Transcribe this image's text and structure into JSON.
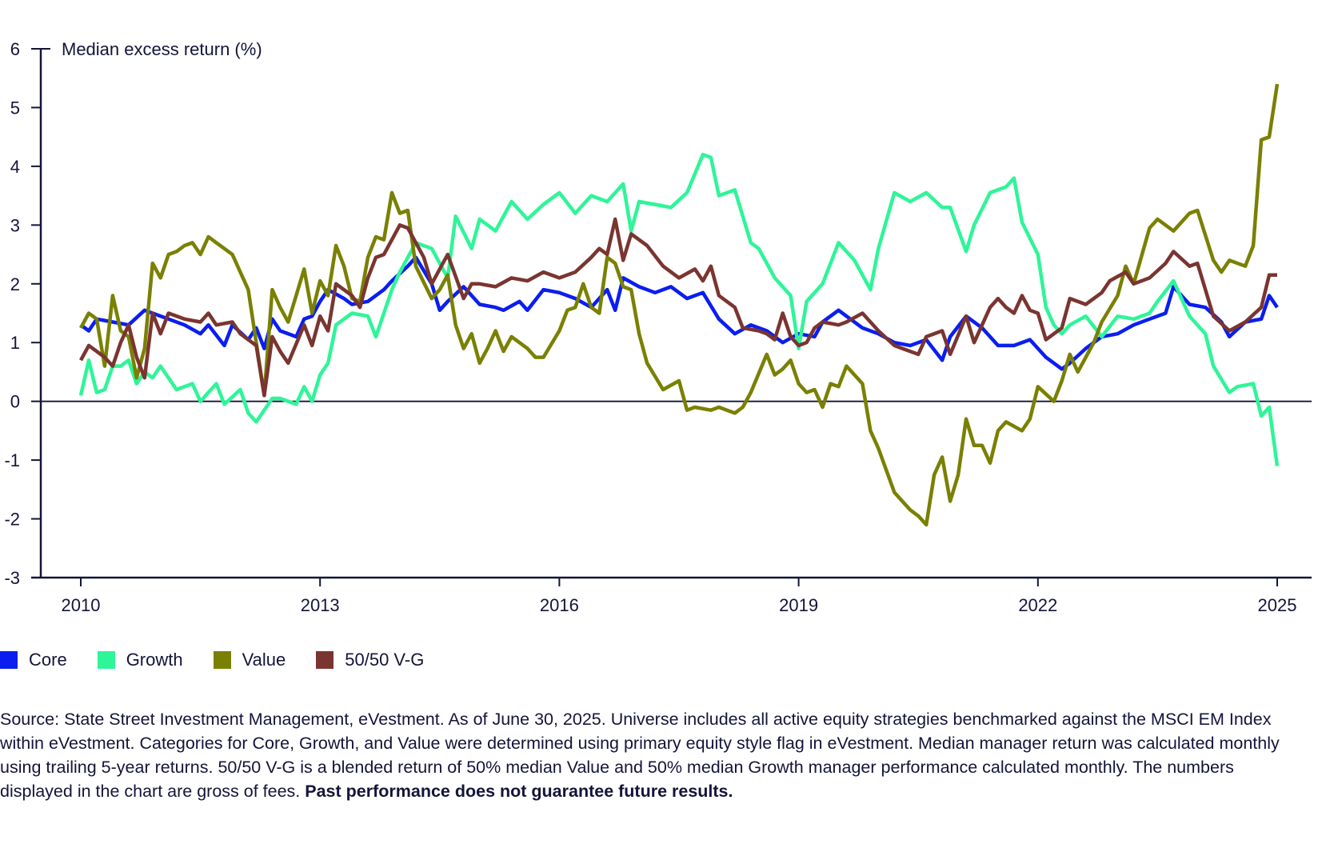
{
  "chart_data": {
    "type": "line",
    "title": "",
    "ylabel": "Median excess return (%)",
    "xlabel": "",
    "xlim": [
      2009.5,
      2025.7
    ],
    "ylim": [
      -3,
      6
    ],
    "yticks": [
      -3,
      -2,
      -1,
      0,
      1,
      2,
      3,
      4,
      5,
      6
    ],
    "xticks": [
      2010,
      2013,
      2016,
      2019,
      2022,
      2025
    ],
    "grid": false,
    "zero_line": true,
    "legend_position": "bottom-left",
    "series": [
      {
        "name": "Core",
        "color": "#0a1ef0",
        "x": [
          2010.0,
          2010.1,
          2010.2,
          2010.4,
          2010.6,
          2010.8,
          2010.9,
          2011.1,
          2011.3,
          2011.5,
          2011.6,
          2011.8,
          2011.9,
          2012.1,
          2012.2,
          2012.3,
          2012.4,
          2012.5,
          2012.7,
          2012.8,
          2012.9,
          2013.0,
          2013.1,
          2013.3,
          2013.4,
          2013.6,
          2013.8,
          2013.9,
          2014.1,
          2014.2,
          2014.4,
          2014.5,
          2014.6,
          2014.8,
          2015.0,
          2015.2,
          2015.3,
          2015.5,
          2015.6,
          2015.8,
          2016.0,
          2016.2,
          2016.4,
          2016.6,
          2016.7,
          2016.8,
          2017.0,
          2017.2,
          2017.4,
          2017.6,
          2017.8,
          2018.0,
          2018.2,
          2018.4,
          2018.6,
          2018.8,
          2019.0,
          2019.2,
          2019.3,
          2019.5,
          2019.6,
          2019.8,
          2020.0,
          2020.2,
          2020.4,
          2020.6,
          2020.8,
          2020.9,
          2021.1,
          2021.3,
          2021.5,
          2021.7,
          2021.9,
          2022.1,
          2022.3,
          2022.4,
          2022.6,
          2022.8,
          2023.0,
          2023.2,
          2023.4,
          2023.6,
          2023.7,
          2023.9,
          2024.1,
          2024.3,
          2024.4,
          2024.6,
          2024.8,
          2024.9,
          2025.0
        ],
        "y": [
          1.3,
          1.2,
          1.4,
          1.35,
          1.3,
          1.55,
          1.5,
          1.4,
          1.3,
          1.15,
          1.3,
          0.95,
          1.3,
          1.05,
          1.25,
          0.9,
          1.4,
          1.2,
          1.1,
          1.4,
          1.45,
          1.7,
          1.9,
          1.75,
          1.65,
          1.7,
          1.9,
          2.05,
          2.3,
          2.45,
          2.0,
          1.55,
          1.7,
          1.95,
          1.65,
          1.6,
          1.55,
          1.7,
          1.55,
          1.9,
          1.85,
          1.75,
          1.6,
          1.9,
          1.55,
          2.1,
          1.95,
          1.85,
          1.95,
          1.75,
          1.85,
          1.4,
          1.15,
          1.3,
          1.2,
          1.0,
          1.15,
          1.1,
          1.35,
          1.55,
          1.45,
          1.25,
          1.15,
          1.0,
          0.95,
          1.05,
          0.7,
          1.1,
          1.45,
          1.25,
          0.95,
          0.95,
          1.05,
          0.75,
          0.55,
          0.65,
          0.9,
          1.1,
          1.15,
          1.3,
          1.4,
          1.5,
          1.95,
          1.65,
          1.6,
          1.35,
          1.1,
          1.35,
          1.4,
          1.8,
          1.6
        ]
      },
      {
        "name": "Growth",
        "color": "#2ef598",
        "x": [
          2010.0,
          2010.1,
          2010.2,
          2010.3,
          2010.4,
          2010.5,
          2010.6,
          2010.7,
          2010.8,
          2010.9,
          2011.0,
          2011.2,
          2011.4,
          2011.5,
          2011.7,
          2011.8,
          2012.0,
          2012.1,
          2012.2,
          2012.4,
          2012.5,
          2012.7,
          2012.8,
          2012.9,
          2013.0,
          2013.1,
          2013.2,
          2013.4,
          2013.6,
          2013.7,
          2013.9,
          2014.0,
          2014.2,
          2014.4,
          2014.6,
          2014.7,
          2014.9,
          2015.0,
          2015.2,
          2015.4,
          2015.6,
          2015.8,
          2016.0,
          2016.2,
          2016.4,
          2016.6,
          2016.8,
          2016.9,
          2017.0,
          2017.2,
          2017.4,
          2017.6,
          2017.8,
          2017.9,
          2018.0,
          2018.2,
          2018.4,
          2018.5,
          2018.7,
          2018.9,
          2019.0,
          2019.1,
          2019.3,
          2019.5,
          2019.7,
          2019.9,
          2020.0,
          2020.2,
          2020.4,
          2020.6,
          2020.8,
          2020.9,
          2021.1,
          2021.2,
          2021.4,
          2021.6,
          2021.7,
          2021.8,
          2022.0,
          2022.1,
          2022.2,
          2022.3,
          2022.4,
          2022.6,
          2022.8,
          2023.0,
          2023.2,
          2023.4,
          2023.5,
          2023.7,
          2023.9,
          2024.1,
          2024.2,
          2024.4,
          2024.5,
          2024.7,
          2024.8,
          2024.9,
          2025.0
        ],
        "y": [
          0.1,
          0.7,
          0.15,
          0.2,
          0.6,
          0.6,
          0.7,
          0.3,
          0.5,
          0.4,
          0.6,
          0.2,
          0.3,
          0.0,
          0.3,
          -0.05,
          0.2,
          -0.2,
          -0.35,
          0.05,
          0.05,
          -0.05,
          0.25,
          0.0,
          0.45,
          0.65,
          1.3,
          1.5,
          1.45,
          1.1,
          1.9,
          2.2,
          2.7,
          2.6,
          2.1,
          3.15,
          2.6,
          3.1,
          2.9,
          3.4,
          3.1,
          3.35,
          3.55,
          3.2,
          3.5,
          3.4,
          3.7,
          2.9,
          3.4,
          3.35,
          3.3,
          3.55,
          4.2,
          4.15,
          3.5,
          3.6,
          2.7,
          2.6,
          2.1,
          1.8,
          0.9,
          1.7,
          2.0,
          2.7,
          2.4,
          1.9,
          2.6,
          3.55,
          3.4,
          3.55,
          3.3,
          3.3,
          2.55,
          3.0,
          3.55,
          3.65,
          3.8,
          3.05,
          2.5,
          1.6,
          1.3,
          1.15,
          1.3,
          1.45,
          1.1,
          1.45,
          1.4,
          1.5,
          1.7,
          2.05,
          1.45,
          1.15,
          0.6,
          0.15,
          0.25,
          0.3,
          -0.25,
          -0.1,
          -1.1
        ]
      },
      {
        "name": "Value",
        "color": "#7a8000",
        "x": [
          2010.0,
          2010.1,
          2010.2,
          2010.3,
          2010.4,
          2010.5,
          2010.6,
          2010.7,
          2010.8,
          2010.9,
          2011.0,
          2011.1,
          2011.2,
          2011.3,
          2011.4,
          2011.5,
          2011.6,
          2011.7,
          2011.8,
          2011.9,
          2012.1,
          2012.2,
          2012.3,
          2012.4,
          2012.5,
          2012.6,
          2012.8,
          2012.9,
          2013.0,
          2013.1,
          2013.2,
          2013.3,
          2013.4,
          2013.5,
          2013.6,
          2013.7,
          2013.8,
          2013.9,
          2014.0,
          2014.1,
          2014.2,
          2014.4,
          2014.5,
          2014.6,
          2014.7,
          2014.8,
          2014.9,
          2015.0,
          2015.1,
          2015.2,
          2015.3,
          2015.4,
          2015.6,
          2015.7,
          2015.8,
          2016.0,
          2016.1,
          2016.2,
          2016.3,
          2016.4,
          2016.5,
          2016.6,
          2016.7,
          2016.8,
          2016.9,
          2017.0,
          2017.1,
          2017.3,
          2017.5,
          2017.6,
          2017.7,
          2017.9,
          2018.0,
          2018.2,
          2018.3,
          2018.4,
          2018.6,
          2018.7,
          2018.8,
          2018.9,
          2019.0,
          2019.1,
          2019.2,
          2019.3,
          2019.4,
          2019.5,
          2019.6,
          2019.8,
          2019.9,
          2020.0,
          2020.2,
          2020.4,
          2020.5,
          2020.6,
          2020.7,
          2020.8,
          2020.9,
          2021.0,
          2021.1,
          2021.2,
          2021.3,
          2021.4,
          2021.5,
          2021.6,
          2021.8,
          2021.9,
          2022.0,
          2022.2,
          2022.3,
          2022.4,
          2022.5,
          2022.7,
          2022.8,
          2023.0,
          2023.1,
          2023.2,
          2023.4,
          2023.5,
          2023.7,
          2023.8,
          2023.9,
          2024.0,
          2024.2,
          2024.3,
          2024.4,
          2024.6,
          2024.7,
          2024.8,
          2024.9,
          2025.0
        ],
        "y": [
          1.25,
          1.5,
          1.4,
          0.6,
          1.8,
          1.2,
          1.1,
          0.4,
          0.9,
          2.35,
          2.1,
          2.5,
          2.55,
          2.65,
          2.7,
          2.5,
          2.8,
          2.7,
          2.6,
          2.5,
          1.9,
          1.0,
          0.1,
          1.9,
          1.6,
          1.35,
          2.25,
          1.5,
          2.05,
          1.8,
          2.65,
          2.3,
          1.75,
          1.7,
          2.45,
          2.8,
          2.75,
          3.55,
          3.2,
          3.25,
          2.3,
          1.75,
          1.9,
          2.15,
          1.3,
          0.9,
          1.15,
          0.65,
          0.9,
          1.2,
          0.85,
          1.1,
          0.9,
          0.75,
          0.75,
          1.2,
          1.55,
          1.6,
          2.0,
          1.6,
          1.5,
          2.45,
          2.35,
          1.95,
          1.9,
          1.15,
          0.65,
          0.2,
          0.35,
          -0.15,
          -0.1,
          -0.15,
          -0.1,
          -0.2,
          -0.1,
          0.15,
          0.8,
          0.45,
          0.55,
          0.7,
          0.3,
          0.15,
          0.2,
          -0.1,
          0.3,
          0.25,
          0.6,
          0.3,
          -0.5,
          -0.8,
          -1.55,
          -1.85,
          -1.95,
          -2.1,
          -1.25,
          -0.95,
          -1.7,
          -1.25,
          -0.3,
          -0.75,
          -0.75,
          -1.05,
          -0.5,
          -0.35,
          -0.5,
          -0.3,
          0.25,
          0.0,
          0.35,
          0.8,
          0.5,
          1.0,
          1.35,
          1.8,
          2.3,
          2.0,
          2.95,
          3.1,
          2.9,
          3.05,
          3.2,
          3.25,
          2.4,
          2.2,
          2.4,
          2.3,
          2.65,
          4.45,
          4.5,
          5.4
        ]
      },
      {
        "name": "50/50 V-G",
        "color": "#7a3530",
        "x": [
          2010.0,
          2010.1,
          2010.2,
          2010.3,
          2010.4,
          2010.5,
          2010.6,
          2010.7,
          2010.8,
          2010.9,
          2011.0,
          2011.1,
          2011.3,
          2011.5,
          2011.6,
          2011.7,
          2011.9,
          2012.0,
          2012.2,
          2012.3,
          2012.4,
          2012.5,
          2012.6,
          2012.8,
          2012.9,
          2013.0,
          2013.1,
          2013.2,
          2013.4,
          2013.5,
          2013.6,
          2013.7,
          2013.8,
          2013.9,
          2014.0,
          2014.1,
          2014.3,
          2014.4,
          2014.6,
          2014.8,
          2014.9,
          2015.0,
          2015.2,
          2015.4,
          2015.6,
          2015.8,
          2016.0,
          2016.2,
          2016.4,
          2016.5,
          2016.6,
          2016.7,
          2016.8,
          2016.9,
          2017.1,
          2017.3,
          2017.5,
          2017.7,
          2017.8,
          2017.9,
          2018.0,
          2018.2,
          2018.3,
          2018.5,
          2018.6,
          2018.7,
          2018.8,
          2018.9,
          2019.0,
          2019.1,
          2019.2,
          2019.3,
          2019.5,
          2019.6,
          2019.8,
          2020.0,
          2020.2,
          2020.3,
          2020.5,
          2020.6,
          2020.8,
          2020.9,
          2021.1,
          2021.2,
          2021.4,
          2021.5,
          2021.6,
          2021.7,
          2021.8,
          2021.9,
          2022.0,
          2022.1,
          2022.3,
          2022.4,
          2022.6,
          2022.8,
          2022.9,
          2023.1,
          2023.2,
          2023.4,
          2023.6,
          2023.7,
          2023.9,
          2024.0,
          2024.2,
          2024.4,
          2024.6,
          2024.8,
          2024.9,
          2025.0
        ],
        "y": [
          0.7,
          0.95,
          0.85,
          0.75,
          0.6,
          1.0,
          1.3,
          0.75,
          0.4,
          1.5,
          1.15,
          1.5,
          1.4,
          1.35,
          1.5,
          1.3,
          1.35,
          1.15,
          0.95,
          0.1,
          1.1,
          0.85,
          0.65,
          1.3,
          0.95,
          1.45,
          1.2,
          2.0,
          1.8,
          1.6,
          2.1,
          2.45,
          2.5,
          2.75,
          3.0,
          2.95,
          2.45,
          2.0,
          2.5,
          1.75,
          2.0,
          2.0,
          1.95,
          2.1,
          2.05,
          2.2,
          2.1,
          2.2,
          2.45,
          2.6,
          2.5,
          3.1,
          2.4,
          2.85,
          2.65,
          2.3,
          2.1,
          2.25,
          2.05,
          2.3,
          1.8,
          1.6,
          1.25,
          1.2,
          1.15,
          1.05,
          1.5,
          1.1,
          0.95,
          1.0,
          1.25,
          1.35,
          1.3,
          1.35,
          1.5,
          1.2,
          0.95,
          0.9,
          0.8,
          1.1,
          1.2,
          0.8,
          1.45,
          1.0,
          1.6,
          1.75,
          1.6,
          1.5,
          1.8,
          1.55,
          1.5,
          1.05,
          1.25,
          1.75,
          1.65,
          1.85,
          2.05,
          2.2,
          2.0,
          2.1,
          2.35,
          2.55,
          2.3,
          2.35,
          1.45,
          1.2,
          1.35,
          1.6,
          2.15,
          2.15
        ]
      }
    ]
  },
  "legend": {
    "items": [
      {
        "label": "Core",
        "color": "#0a1ef0"
      },
      {
        "label": "Growth",
        "color": "#2ef598"
      },
      {
        "label": "Value",
        "color": "#7a8000"
      },
      {
        "label": "50/50 V-G",
        "color": "#7a3530"
      }
    ]
  },
  "source_note": {
    "text": "Source: State Street Investment Management, eVestment. As of June 30, 2025. Universe includes all active equity strategies benchmarked against the MSCI EM Index within eVestment. Categories for Core, Growth, and Value were determined using primary equity style flag in eVestment. Median manager return was calculated monthly using trailing 5-year returns. 50/50 V-G is a blended return of 50% median Value and 50% median Growth manager performance calculated monthly. The numbers displayed in the chart are gross of fees.",
    "bold_text": "Past performance does not guarantee future results."
  }
}
